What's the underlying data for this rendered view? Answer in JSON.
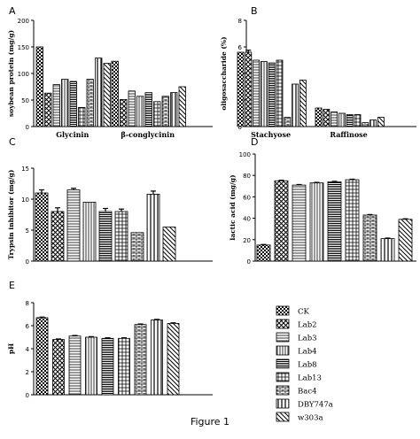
{
  "caption": "Figure 1",
  "legend": {
    "items": [
      {
        "label": "CK",
        "pattern": "checker"
      },
      {
        "label": "Lab2",
        "pattern": "xhatch"
      },
      {
        "label": "Lab3",
        "pattern": "hlines"
      },
      {
        "label": "Lab4",
        "pattern": "vlines"
      },
      {
        "label": "Lab8",
        "pattern": "denseh"
      },
      {
        "label": "Lab13",
        "pattern": "grid"
      },
      {
        "label": "Bac4",
        "pattern": "bricks"
      },
      {
        "label": "DBY747a",
        "pattern": "vlines2"
      },
      {
        "label": "w303a",
        "pattern": "diag"
      }
    ]
  },
  "chart_data": [
    {
      "panel": "A",
      "type": "bar",
      "ylabel": "soybean protein (mg/g)",
      "groups": [
        "Glycinin",
        "β-conglycinin"
      ],
      "ylim": [
        0,
        200
      ],
      "yticks": [
        0,
        50,
        100,
        150,
        200
      ],
      "series_values": [
        [
          150,
          123
        ],
        [
          63,
          51
        ],
        [
          79,
          67
        ],
        [
          89,
          57
        ],
        [
          85,
          64
        ],
        [
          36,
          47
        ],
        [
          89,
          57
        ],
        [
          129,
          64
        ],
        [
          119,
          75
        ]
      ]
    },
    {
      "panel": "B",
      "type": "bar",
      "ylabel": "oligosaccharide (%)",
      "groups": [
        "Stachyose",
        "Raffinose"
      ],
      "ylim": [
        0,
        8
      ],
      "yticks": [
        0,
        2,
        4,
        6,
        8
      ],
      "series_values": [
        [
          5.6,
          1.4
        ],
        [
          5.6,
          1.3
        ],
        [
          5.0,
          1.1
        ],
        [
          4.9,
          1.0
        ],
        [
          4.8,
          0.9
        ],
        [
          5.0,
          0.9
        ],
        [
          0.7,
          0.3
        ],
        [
          3.2,
          0.5
        ],
        [
          3.5,
          0.7
        ]
      ],
      "error_bars": [
        [
          0.0,
          0.0
        ],
        [
          0.15,
          0.0
        ],
        [
          0.0,
          0.0
        ],
        [
          0.0,
          0.0
        ],
        [
          0.0,
          0.0
        ],
        [
          0.0,
          0.0
        ],
        [
          0.0,
          0.0
        ],
        [
          0.0,
          0.0
        ],
        [
          0.0,
          0.0
        ]
      ]
    },
    {
      "panel": "C",
      "type": "bar",
      "ylabel": "Trypsin inhibitor (mg/g)",
      "ylim": [
        0,
        15
      ],
      "yticks": [
        0,
        5,
        10,
        15
      ],
      "values": [
        11.0,
        8.0,
        11.5,
        9.5,
        8.0,
        8.0,
        4.6,
        10.8,
        5.5
      ],
      "error_bars": [
        0.5,
        0.6,
        0.25,
        0.0,
        0.5,
        0.4,
        0.0,
        0.5,
        0.0
      ]
    },
    {
      "panel": "D",
      "type": "bar",
      "ylabel": "lactic acid (mg/g)",
      "ylim": [
        0,
        100
      ],
      "yticks": [
        0,
        20,
        40,
        60,
        80,
        100
      ],
      "values": [
        15,
        75,
        71,
        73,
        74,
        76,
        43,
        21,
        39
      ],
      "error_bars": [
        0.5,
        0.5,
        0.5,
        0.5,
        0.5,
        0.5,
        0.5,
        0.5,
        0.5
      ]
    },
    {
      "panel": "E",
      "type": "bar",
      "ylabel": "pH",
      "ylim": [
        0,
        8
      ],
      "yticks": [
        0,
        2,
        4,
        6,
        8
      ],
      "values": [
        6.7,
        4.8,
        5.1,
        5.0,
        4.9,
        4.9,
        6.1,
        6.5,
        6.2
      ],
      "error_bars": [
        0.05,
        0.05,
        0.05,
        0.05,
        0.05,
        0.05,
        0.05,
        0.05,
        0.05
      ]
    }
  ]
}
